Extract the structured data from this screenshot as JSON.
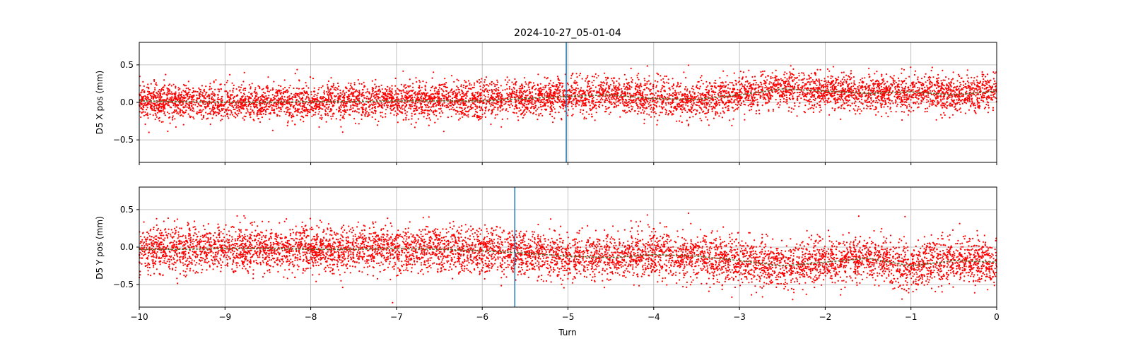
{
  "chart_data": {
    "type": "scatter",
    "title": "2024-10-27_05-01-04",
    "xlabel": "Turn",
    "xlim": [
      -10,
      0
    ],
    "x_ticks": [
      -10,
      -9,
      -8,
      -7,
      -6,
      -5,
      -4,
      -3,
      -2,
      -1,
      0
    ],
    "x_tick_labels": [
      "−10",
      "−9",
      "−8",
      "−7",
      "−6",
      "−5",
      "−4",
      "−3",
      "−2",
      "−1",
      "0"
    ],
    "grid": true,
    "point_color": "#ff0000",
    "trend_color": "#556b2f",
    "marker_line_color": "#1f77b4",
    "panels": [
      {
        "ylabel": "D5 X pos (mm)",
        "ylim": [
          -0.8,
          0.8
        ],
        "y_ticks": [
          -0.5,
          0.0,
          0.5
        ],
        "y_tick_labels": [
          "−0.5",
          "0.0",
          "0.5"
        ],
        "vertical_marker_x": -5.02,
        "scatter_noise_sd": 0.12,
        "mean_trend": {
          "x": [
            -10,
            -9.5,
            -9,
            -8.5,
            -8,
            -7.5,
            -7,
            -6.5,
            -6,
            -5.5,
            -5,
            -4.5,
            -4,
            -3.5,
            -3,
            -2.5,
            -2,
            -1.5,
            -1,
            -0.5,
            0
          ],
          "y": [
            0.02,
            0.01,
            0.0,
            0.0,
            0.01,
            0.01,
            0.02,
            0.02,
            0.02,
            0.05,
            0.08,
            0.1,
            0.05,
            0.04,
            0.1,
            0.18,
            0.15,
            0.12,
            0.14,
            0.1,
            0.15
          ]
        }
      },
      {
        "ylabel": "D5 Y pos (mm)",
        "ylim": [
          -0.8,
          0.8
        ],
        "y_ticks": [
          -0.5,
          0.0,
          0.5
        ],
        "y_tick_labels": [
          "−0.5",
          "0.0",
          "0.5"
        ],
        "vertical_marker_x": -5.62,
        "scatter_noise_sd": 0.15,
        "mean_trend": {
          "x": [
            -10,
            -9.5,
            -9,
            -8.5,
            -8,
            -7.5,
            -7,
            -6.5,
            -6,
            -5.5,
            -5,
            -4.5,
            -4,
            -3.5,
            -3,
            -2.5,
            -2,
            -1.5,
            -1,
            -0.5,
            0
          ],
          "y": [
            -0.03,
            -0.03,
            -0.02,
            -0.02,
            -0.03,
            -0.03,
            -0.02,
            -0.03,
            -0.05,
            -0.08,
            -0.12,
            -0.14,
            -0.1,
            -0.12,
            -0.18,
            -0.25,
            -0.2,
            -0.15,
            -0.25,
            -0.18,
            -0.2
          ]
        }
      }
    ]
  }
}
